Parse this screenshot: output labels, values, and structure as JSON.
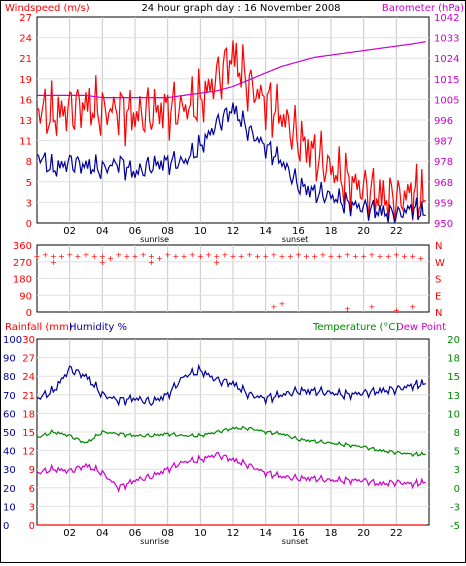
{
  "chart_data": [
    {
      "type": "line",
      "title": "24 hour graph day : 16 November 2008",
      "left_label": "Windspeed (m/s)",
      "right_label": "Barometer (hPa)",
      "left_axis": {
        "ticks": [
          "27",
          "24",
          "21",
          "19",
          "16",
          "13",
          "11",
          "8",
          "5",
          "3",
          "0"
        ],
        "ylim": [
          0,
          27
        ]
      },
      "right_axis": {
        "ticks": [
          "1042",
          "1033",
          "1024",
          "1015",
          "1005",
          "996",
          "987",
          "978",
          "968",
          "959",
          "950"
        ],
        "ylim": [
          950,
          1042
        ]
      },
      "x_ticks": [
        "02",
        "04",
        "06",
        "08",
        "10",
        "12",
        "14",
        "16",
        "18",
        "20",
        "22"
      ],
      "sunrise_label": "sunrise",
      "sunset_label": "sunset",
      "x": [
        0,
        1,
        2,
        3,
        4,
        5,
        6,
        7,
        8,
        9,
        10,
        11,
        12,
        13,
        14,
        15,
        16,
        17,
        18,
        19,
        20,
        21,
        22,
        23,
        23.8
      ],
      "series": [
        {
          "color": "#ff0000",
          "values": [
            15,
            14,
            15,
            15.5,
            14.5,
            15,
            14,
            14.5,
            15,
            15,
            16,
            19,
            22,
            18,
            16,
            14,
            11,
            9,
            7,
            5.5,
            4.5,
            3.5,
            3,
            4,
            3
          ]
        },
        {
          "color": "#000099",
          "values": [
            9,
            7,
            8,
            7.5,
            7,
            8,
            6.5,
            7.5,
            8,
            8,
            10,
            13,
            15,
            12,
            10,
            8,
            5,
            4,
            3.5,
            2.5,
            2,
            1.5,
            1,
            2,
            1
          ]
        },
        {
          "color": "#cc00cc",
          "values": [
            1007,
            1007,
            1007,
            1007,
            1006,
            1006,
            1006,
            1006,
            1006,
            1007,
            1008,
            1009,
            1011,
            1014,
            1017,
            1020,
            1022,
            1024,
            1025,
            1026,
            1027,
            1028,
            1029,
            1030,
            1031
          ]
        }
      ]
    },
    {
      "type": "scatter",
      "left_axis": {
        "ticks": [
          "360",
          "270",
          "180",
          "90",
          "0"
        ],
        "ylim": [
          0,
          360
        ]
      },
      "right_axis": {
        "ticks": [
          "N",
          "W",
          "S",
          "E",
          "N"
        ]
      },
      "series": [
        {
          "color": "#ff0000",
          "x": [
            0,
            0.5,
            1,
            1.5,
            2,
            2.5,
            3,
            3.5,
            4,
            4.5,
            5,
            5.5,
            6,
            6.5,
            7,
            7.5,
            8,
            8.5,
            9,
            9.5,
            10,
            10.5,
            11,
            11.5,
            12,
            12.5,
            13,
            13.5,
            14,
            14.5,
            15,
            15.5,
            16,
            16.5,
            17,
            17.5,
            18,
            18.5,
            19,
            19.5,
            20,
            20.5,
            21,
            21.5,
            22,
            22.5,
            23,
            23.5,
            1,
            4,
            7,
            11,
            14.5,
            15,
            19,
            20.5,
            22,
            23
          ],
          "values": [
            300,
            310,
            300,
            300,
            310,
            300,
            310,
            300,
            300,
            290,
            310,
            300,
            300,
            310,
            300,
            290,
            310,
            300,
            300,
            310,
            300,
            310,
            300,
            310,
            300,
            300,
            310,
            300,
            300,
            310,
            300,
            300,
            310,
            300,
            300,
            310,
            300,
            300,
            310,
            300,
            300,
            310,
            300,
            300,
            310,
            300,
            300,
            290,
            270,
            270,
            270,
            270,
            30,
            45,
            20,
            30,
            10,
            30
          ]
        }
      ]
    },
    {
      "type": "line",
      "left_labels": [
        "Rainfall (mm)",
        "Humidity %"
      ],
      "right_labels": [
        "Temperature (°C)",
        "Dew Point"
      ],
      "humidity_axis": {
        "ticks": [
          "100",
          "90",
          "80",
          "70",
          "60",
          "50",
          "40",
          "30",
          "20",
          "10",
          "0"
        ],
        "ylim": [
          0,
          100
        ]
      },
      "rain_axis": {
        "ticks": [
          "30",
          "27",
          "24",
          "21",
          "18",
          "15",
          "12",
          "9",
          "6",
          "3",
          "0"
        ],
        "ylim": [
          0,
          30
        ]
      },
      "temp_axis": {
        "ticks": [
          "20",
          "18",
          "15",
          "13",
          "10",
          "8",
          "5",
          "3",
          "0",
          "-3",
          "-5"
        ],
        "ylim": [
          -5,
          20
        ]
      },
      "x_ticks": [
        "02",
        "04",
        "06",
        "08",
        "10",
        "12",
        "14",
        "16",
        "18",
        "20",
        "22"
      ],
      "sunrise_label": "sunrise",
      "sunset_label": "sunset",
      "x": [
        0,
        1,
        2,
        3,
        4,
        5,
        6,
        7,
        8,
        9,
        10,
        11,
        12,
        13,
        14,
        15,
        16,
        17,
        18,
        19,
        20,
        21,
        22,
        23,
        23.8
      ],
      "series": [
        {
          "color": "#000099",
          "values": [
            68,
            72,
            84,
            80,
            70,
            67,
            68,
            66,
            70,
            80,
            83,
            78,
            76,
            70,
            68,
            70,
            72,
            72,
            71,
            70,
            71,
            72,
            73,
            75,
            76
          ]
        },
        {
          "color": "#008800",
          "values": [
            47,
            50,
            48,
            44,
            50,
            49,
            48,
            48,
            49,
            48,
            48,
            50,
            52,
            52,
            50,
            49,
            46,
            45,
            44,
            43,
            42,
            40,
            39,
            38,
            38
          ]
        },
        {
          "color": "#cc00cc",
          "values": [
            28,
            30,
            29,
            32,
            28,
            20,
            24,
            26,
            30,
            34,
            35,
            38,
            35,
            32,
            28,
            26,
            25,
            25,
            24,
            24,
            24,
            22,
            23,
            22,
            23
          ]
        },
        {
          "color": "#ff0000",
          "values": [
            0,
            0,
            0,
            0,
            0,
            0,
            0,
            0,
            0,
            0,
            0,
            0,
            0,
            0,
            0,
            0,
            0,
            0,
            0,
            0,
            0,
            0,
            0,
            0,
            0
          ]
        }
      ]
    }
  ]
}
